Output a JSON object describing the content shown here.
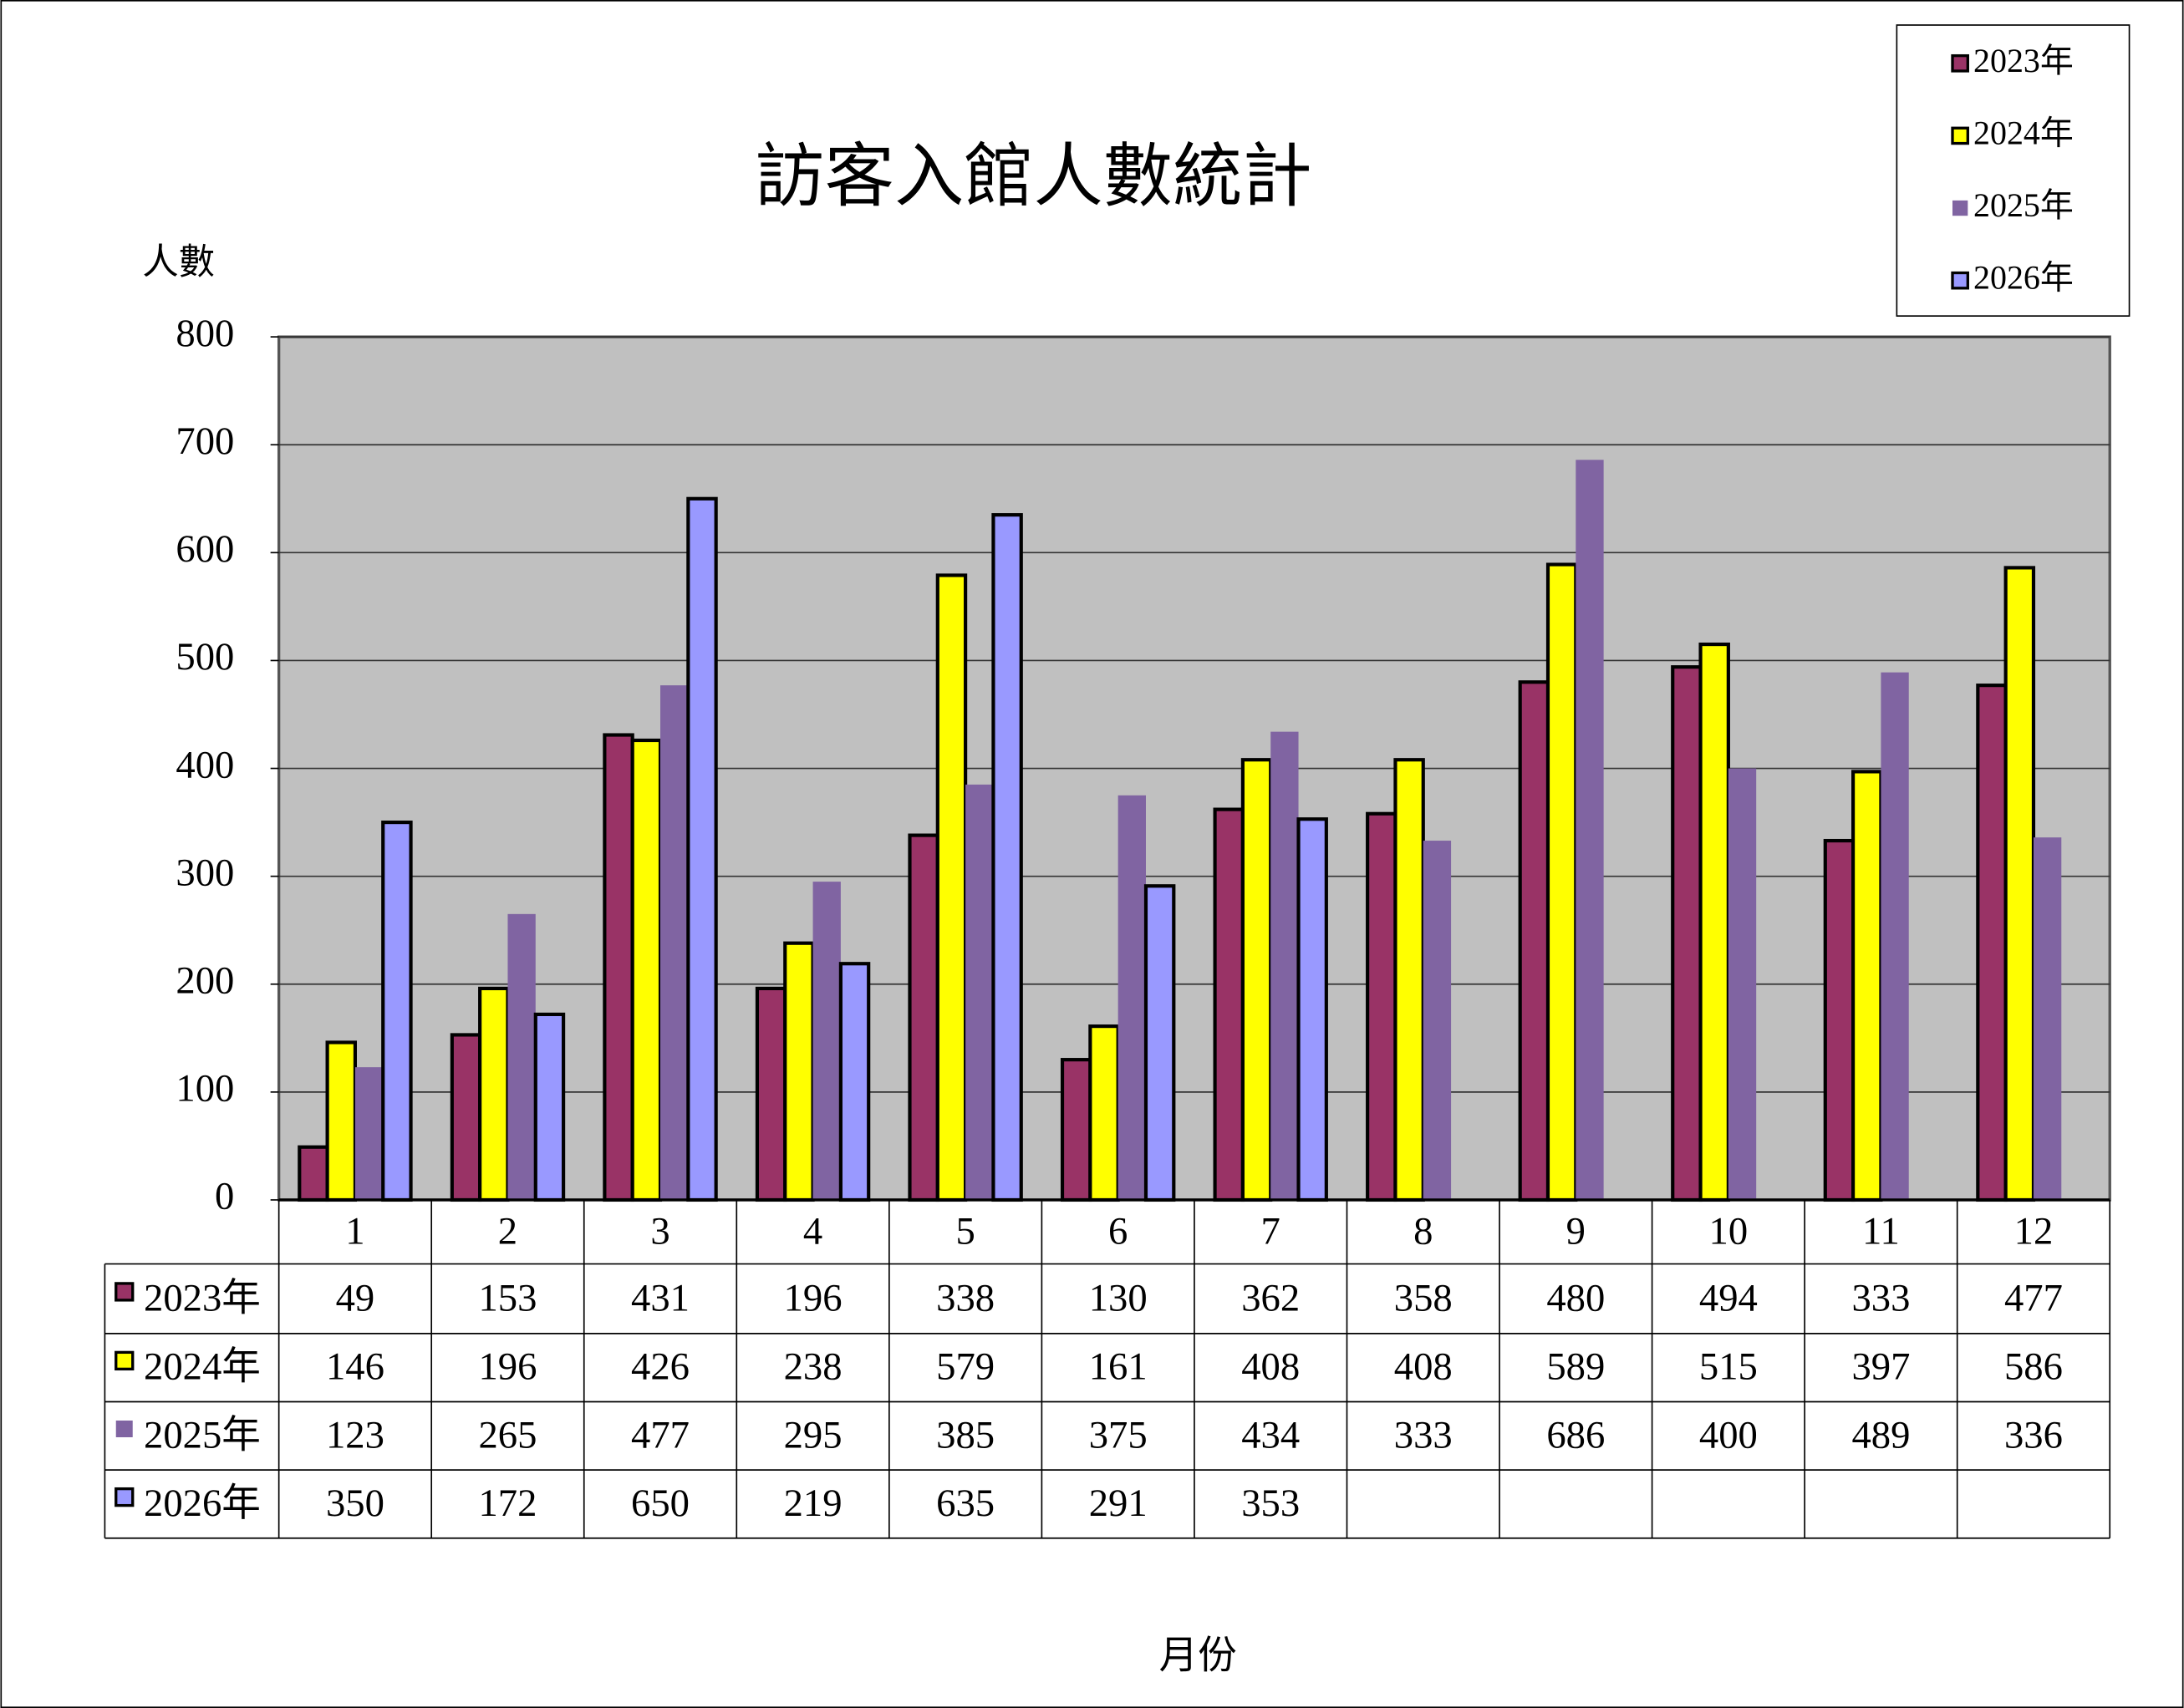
{
  "chart_data": {
    "type": "bar",
    "title": "訪客入館人數統計",
    "y_label": "人數",
    "x_label": "月份",
    "categories": [
      "1",
      "2",
      "3",
      "4",
      "5",
      "6",
      "7",
      "8",
      "9",
      "10",
      "11",
      "12"
    ],
    "series": [
      {
        "name": "2023年",
        "color": "#993366",
        "outline": true,
        "values": [
          49,
          153,
          431,
          196,
          338,
          130,
          362,
          358,
          480,
          494,
          333,
          477
        ]
      },
      {
        "name": "2024年",
        "color": "#FFFF00",
        "outline": true,
        "values": [
          146,
          196,
          426,
          238,
          579,
          161,
          408,
          408,
          589,
          515,
          397,
          586
        ]
      },
      {
        "name": "2025年",
        "color": "#8064A2",
        "outline": false,
        "values": [
          123,
          265,
          477,
          295,
          385,
          375,
          434,
          333,
          686,
          400,
          489,
          336
        ]
      },
      {
        "name": "2026年",
        "color": "#9999FF",
        "outline": true,
        "values": [
          350,
          172,
          650,
          219,
          635,
          291,
          353,
          null,
          null,
          null,
          null,
          null
        ]
      }
    ],
    "ylim": [
      0,
      800
    ],
    "yticks": [
      0,
      100,
      200,
      300,
      400,
      500,
      600,
      700,
      800
    ],
    "grid": true,
    "plot_background": "#C0C0C0",
    "legend_position": "top-right",
    "data_table": true
  }
}
